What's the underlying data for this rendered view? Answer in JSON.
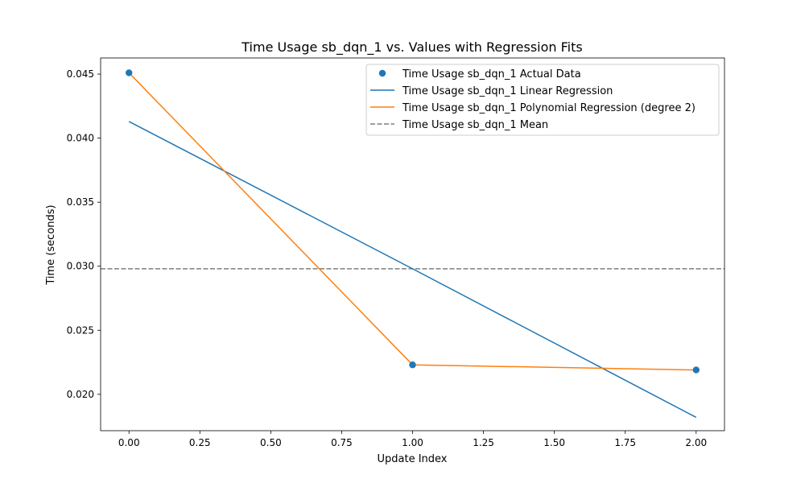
{
  "chart_data": {
    "type": "line",
    "title": "Time Usage sb_dqn_1 vs. Values with Regression Fits",
    "xlabel": "Update Index",
    "ylabel": "Time (seconds)",
    "xlim": [
      -0.1,
      2.1
    ],
    "ylim": [
      0.01716,
      0.04626
    ],
    "xticks": [
      0.0,
      0.25,
      0.5,
      0.75,
      1.0,
      1.25,
      1.5,
      1.75,
      2.0
    ],
    "xtick_labels": [
      "0.00",
      "0.25",
      "0.50",
      "0.75",
      "1.00",
      "1.25",
      "1.50",
      "1.75",
      "2.00"
    ],
    "yticks": [
      0.02,
      0.025,
      0.03,
      0.035,
      0.04,
      0.045
    ],
    "ytick_labels": [
      "0.020",
      "0.025",
      "0.030",
      "0.035",
      "0.040",
      "0.045"
    ],
    "grid": false,
    "legend_position": "top-right",
    "series": [
      {
        "name": "Time Usage sb_dqn_1 Actual Data",
        "kind": "scatter",
        "color": "#1f77b4",
        "x": [
          0,
          1,
          2
        ],
        "y": [
          0.0451,
          0.0223,
          0.0219
        ]
      },
      {
        "name": "Time Usage sb_dqn_1 Linear Regression",
        "kind": "line",
        "color": "#1f77b4",
        "x": [
          0,
          1,
          2
        ],
        "y": [
          0.0413,
          0.0298,
          0.0182
        ]
      },
      {
        "name": "Time Usage sb_dqn_1 Polynomial Regression (degree 2)",
        "kind": "line",
        "color": "#ff7f0e",
        "x": [
          0,
          1,
          2
        ],
        "y": [
          0.0451,
          0.0223,
          0.0219
        ]
      },
      {
        "name": "Time Usage sb_dqn_1 Mean",
        "kind": "hline",
        "color": "#7f7f7f",
        "dash": "dashed",
        "y": 0.0298
      }
    ]
  }
}
